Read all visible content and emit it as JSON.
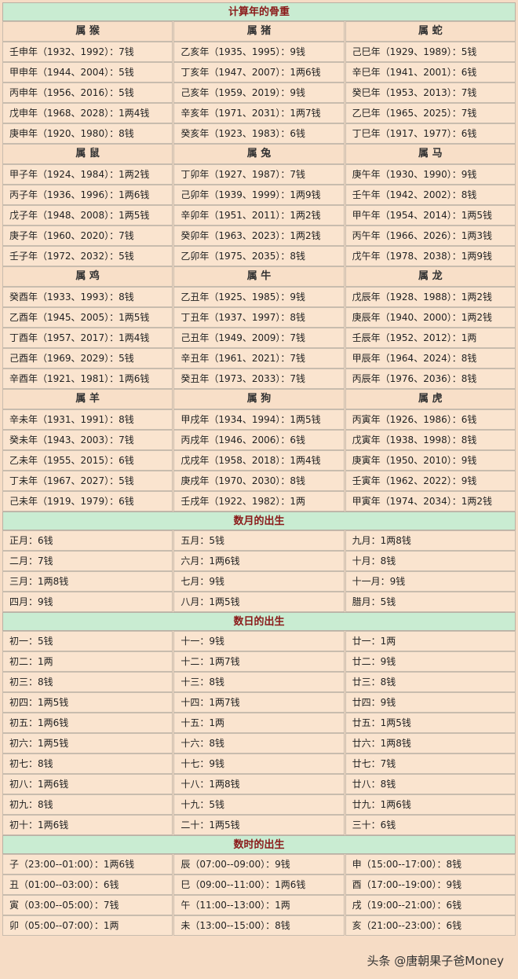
{
  "year_table": {
    "title": "计算年的骨重",
    "groups": [
      {
        "headers": [
          "属 猴",
          "属 猪",
          "属 蛇"
        ],
        "rows": [
          [
            "壬申年（1932、1992）：7钱",
            "乙亥年（1935、1995）：9钱",
            "己巳年（1929、1989）：5钱"
          ],
          [
            "甲申年（1944、2004）：5钱",
            "丁亥年（1947、2007）：1两6钱",
            "辛巳年（1941、2001）：6钱"
          ],
          [
            "丙申年（1956、2016）：5钱",
            "己亥年（1959、2019）：9钱",
            "癸巳年（1953、2013）：7钱"
          ],
          [
            "戊申年（1968、2028）：1两4钱",
            "辛亥年（1971、2031）：1两7钱",
            "乙巳年（1965、2025）：7钱"
          ],
          [
            "庚申年（1920、1980）：8钱",
            "癸亥年（1923、1983）：6钱",
            "丁巳年（1917、1977）：6钱"
          ]
        ]
      },
      {
        "headers": [
          "属 鼠",
          "属 兔",
          "属 马"
        ],
        "rows": [
          [
            "甲子年（1924、1984）：1两2钱",
            "丁卯年（1927、1987）：7钱",
            "庚午年（1930、1990）：9钱"
          ],
          [
            "丙子年（1936、1996）：1两6钱",
            "己卯年（1939、1999）：1两9钱",
            "壬午年（1942、2002）：8钱"
          ],
          [
            "戊子年（1948、2008）：1两5钱",
            "辛卯年（1951、2011）：1两2钱",
            "甲午年（1954、2014）：1两5钱"
          ],
          [
            "庚子年（1960、2020）：7钱",
            "癸卯年（1963、2023）：1两2钱",
            "丙午年（1966、2026）：1两3钱"
          ],
          [
            "壬子年（1972、2032）：5钱",
            "乙卯年（1975、2035）：8钱",
            "戊午年（1978、2038）：1两9钱"
          ]
        ]
      },
      {
        "headers": [
          "属 鸡",
          "属 牛",
          "属 龙"
        ],
        "rows": [
          [
            "癸酉年（1933、1993）：8钱",
            "乙丑年（1925、1985）：9钱",
            "戊辰年（1928、1988）：1两2钱"
          ],
          [
            "乙酉年（1945、2005）：1两5钱",
            "丁丑年（1937、1997）：8钱",
            "庚辰年（1940、2000）：1两2钱"
          ],
          [
            "丁酉年（1957、2017）：1两4钱",
            "己丑年（1949、2009）：7钱",
            "壬辰年（1952、2012）：1两"
          ],
          [
            "己酉年（1969、2029）：5钱",
            "辛丑年（1961、2021）：7钱",
            "甲辰年（1964、2024）：8钱"
          ],
          [
            "辛酉年（1921、1981）：1两6钱",
            "癸丑年（1973、2033）：7钱",
            "丙辰年（1976、2036）：8钱"
          ]
        ]
      },
      {
        "headers": [
          "属 羊",
          "属 狗",
          "属 虎"
        ],
        "rows": [
          [
            "辛未年（1931、1991）：8钱",
            "甲戌年（1934、1994）：1两5钱",
            "丙寅年（1926、1986）：6钱"
          ],
          [
            "癸未年（1943、2003）：7钱",
            "丙戌年（1946、2006）：6钱",
            "戊寅年（1938、1998）：8钱"
          ],
          [
            "乙未年（1955、2015）：6钱",
            "戊戌年（1958、2018）：1两4钱",
            "庚寅年（1950、2010）：9钱"
          ],
          [
            "丁未年（1967、2027）：5钱",
            "庚戌年（1970、2030）：8钱",
            "壬寅年（1962、2022）：9钱"
          ],
          [
            "己未年（1919、1979）：6钱",
            "壬戌年（1922、1982）：1两",
            "甲寅年（1974、2034）：1两2钱"
          ]
        ]
      }
    ]
  },
  "month_table": {
    "title": "数月的出生",
    "rows": [
      [
        "正月：6钱",
        "五月：5钱",
        "九月：1两8钱"
      ],
      [
        "二月：7钱",
        "六月：1两6钱",
        "十月：8钱"
      ],
      [
        "三月：1两8钱",
        "七月：9钱",
        "十一月：9钱"
      ],
      [
        "四月：9钱",
        "八月：1两5钱",
        "腊月：5钱"
      ]
    ]
  },
  "day_table": {
    "title": "数日的出生",
    "rows": [
      [
        "初一：5钱",
        "十一：9钱",
        "廿一：1两"
      ],
      [
        "初二：1两",
        "十二：1两7钱",
        "廿二：9钱"
      ],
      [
        "初三：8钱",
        "十三：8钱",
        "廿三：8钱"
      ],
      [
        "初四：1两5钱",
        "十四：1两7钱",
        "廿四：9钱"
      ],
      [
        "初五：1两6钱",
        "十五：1两",
        "廿五：1两5钱"
      ],
      [
        "初六：1两5钱",
        "十六：8钱",
        "廿六：1两8钱"
      ],
      [
        "初七：8钱",
        "十七：9钱",
        "廿七：7钱"
      ],
      [
        "初八：1两6钱",
        "十八：1两8钱",
        "廿八：8钱"
      ],
      [
        "初九：8钱",
        "十九：5钱",
        "廿九：1两6钱"
      ],
      [
        "初十：1两6钱",
        "二十：1两5钱",
        "三十：6钱"
      ]
    ]
  },
  "hour_table": {
    "title": "数时的出生",
    "rows": [
      [
        "子（23:00--01:00）：1两6钱",
        "辰（07:00--09:00）：9钱",
        "申（15:00--17:00）：8钱"
      ],
      [
        "丑（01:00--03:00）：6钱",
        "巳（09:00--11:00）：1两6钱",
        "酉（17:00--19:00）：9钱"
      ],
      [
        "寅（03:00--05:00）：7钱",
        "午（11:00--13:00）：1两",
        "戌（19:00--21:00）：6钱"
      ],
      [
        "卯（05:00--07:00）：1两",
        "未（13:00--15:00）：8钱",
        "亥（21:00--23:00）：6钱"
      ]
    ]
  },
  "footer": "头条 @唐朝果子爸Money"
}
